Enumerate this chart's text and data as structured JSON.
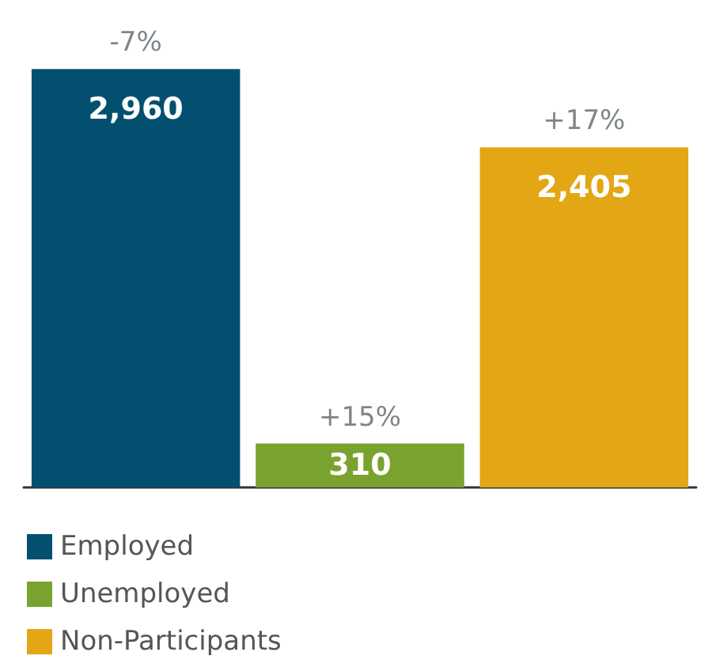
{
  "chart_data": {
    "type": "bar",
    "categories": [
      null,
      null,
      null
    ],
    "stacked": true,
    "tick_labels": false,
    "grid": false,
    "legend": "bottom left",
    "series": [
      {
        "name": "Employed",
        "color": "#034f70",
        "values": [
          2960,
          null,
          null
        ],
        "value_labels": [
          "2,960",
          null,
          null
        ]
      },
      {
        "name": "Unemployed",
        "color": "#7aa22e",
        "values": [
          null,
          310,
          null
        ],
        "value_labels": [
          null,
          "310",
          null
        ]
      },
      {
        "name": "Non-Participants",
        "color": "#e3a614",
        "values": [
          null,
          null,
          2405
        ],
        "value_labels": [
          null,
          null,
          "2,405"
        ]
      }
    ],
    "annotations": [
      {
        "text": "-7%",
        "y": 2960
      },
      {
        "text": "+15%",
        "y": 310
      },
      {
        "text": "+17%",
        "y": 2405
      }
    ]
  }
}
